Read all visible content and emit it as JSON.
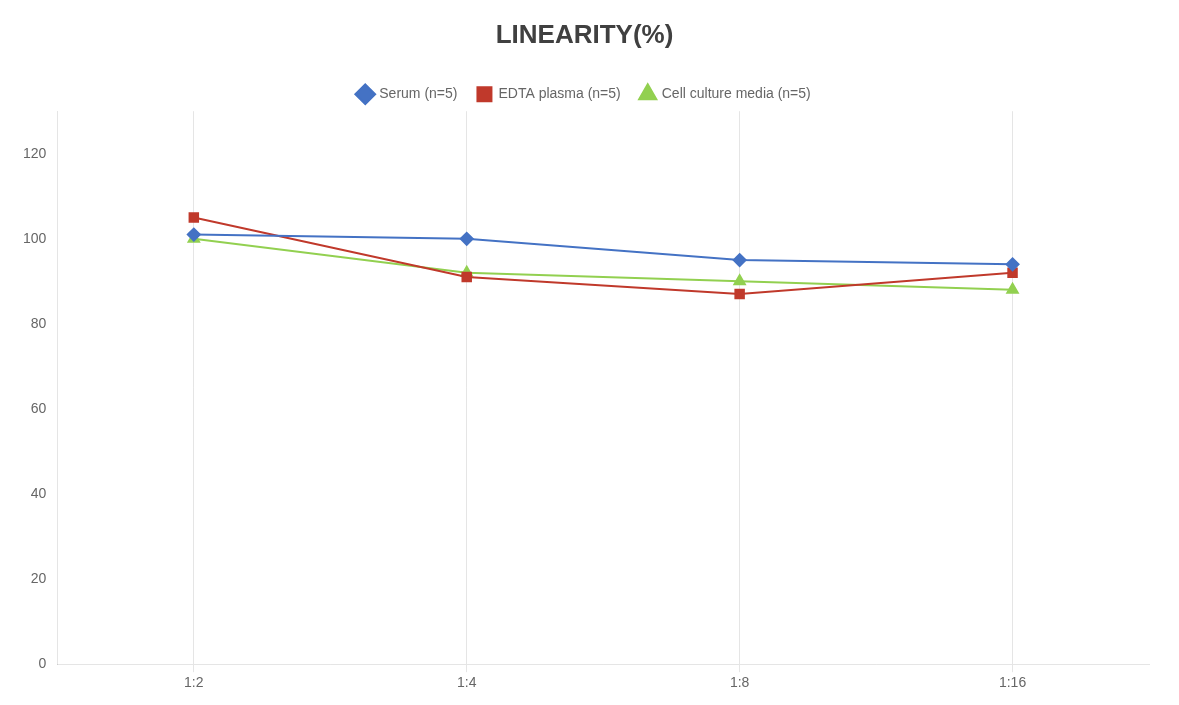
{
  "chart_data": {
    "type": "line",
    "title": "LINEARITY(%)",
    "categories": [
      "1:2",
      "1:4",
      "1:8",
      "1:16"
    ],
    "series": [
      {
        "name": "Serum (n=5)",
        "color": "#4472C4",
        "marker": "diamond",
        "values": [
          101,
          100,
          95,
          94
        ]
      },
      {
        "name": "EDTA plasma (n=5)",
        "color": "#C0392B",
        "marker": "square",
        "values": [
          105,
          91,
          87,
          92
        ]
      },
      {
        "name": "Cell culture media (n=5)",
        "color": "#92D050",
        "marker": "triangle",
        "values": [
          100,
          92,
          90,
          88
        ]
      }
    ],
    "ylim": [
      0,
      130
    ],
    "yticks": [
      0,
      20,
      40,
      60,
      80,
      100,
      120
    ],
    "grid": "x",
    "legend": "top"
  }
}
